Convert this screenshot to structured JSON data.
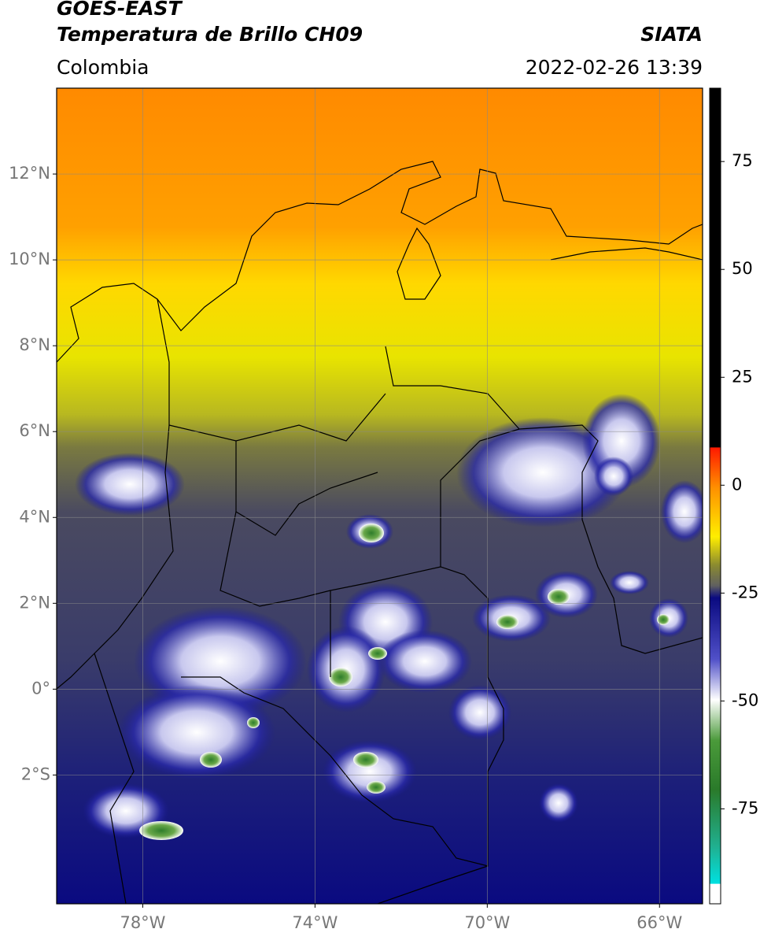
{
  "header": {
    "title_line1": "GOES-EAST",
    "title_line2": "Temperatura de Brillo CH09",
    "source": "SIATA",
    "region": "Colombia",
    "timestamp": "2022-02-26 13:39"
  },
  "map": {
    "xlim": [
      -80,
      -65
    ],
    "ylim": [
      -5,
      14
    ],
    "xticks": [
      {
        "value": -78,
        "label": "78°W"
      },
      {
        "value": -74,
        "label": "74°W"
      },
      {
        "value": -70,
        "label": "70°W"
      },
      {
        "value": -66,
        "label": "66°W"
      }
    ],
    "yticks": [
      {
        "value": 12,
        "label": "12°N"
      },
      {
        "value": 10,
        "label": "10°N"
      },
      {
        "value": 8,
        "label": "8°N"
      },
      {
        "value": 6,
        "label": "6°N"
      },
      {
        "value": 4,
        "label": "4°N"
      },
      {
        "value": 2,
        "label": "2°N"
      },
      {
        "value": 0,
        "label": "0°"
      },
      {
        "value": -2,
        "label": "2°S"
      }
    ],
    "grid": true
  },
  "colorbar": {
    "lim": [
      -97,
      92
    ],
    "ticks": [
      75,
      50,
      25,
      0,
      -25,
      -50,
      -75
    ]
  }
}
